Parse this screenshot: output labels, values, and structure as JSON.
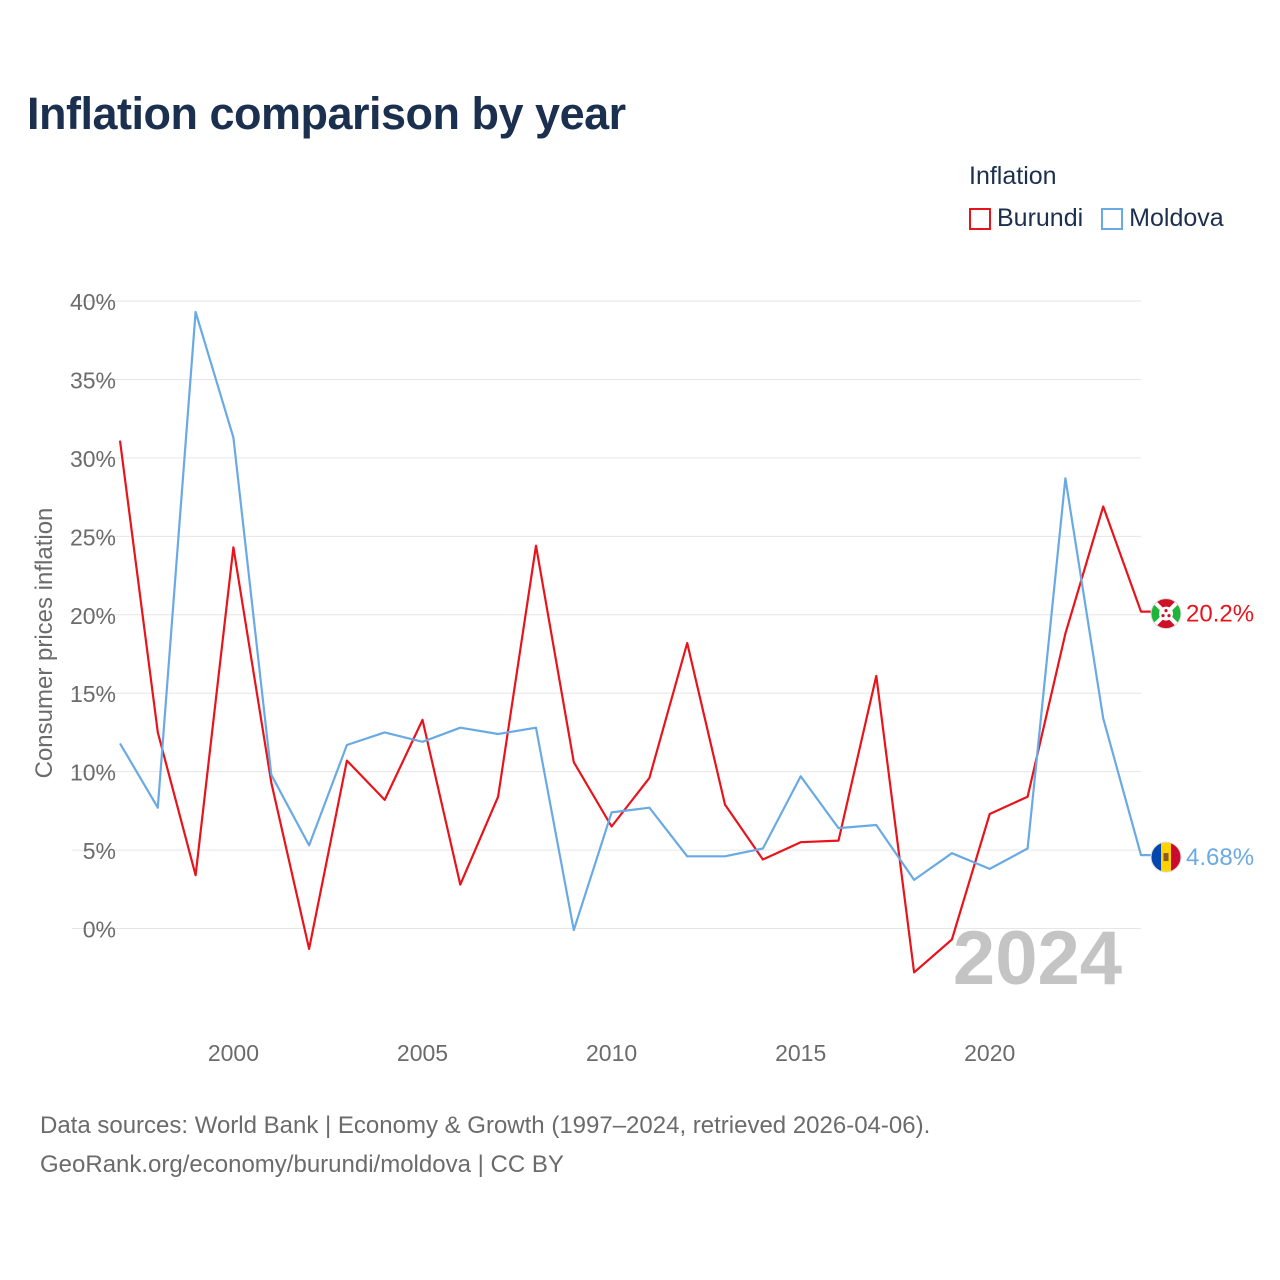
{
  "title": "Inflation comparison by year",
  "legend": {
    "title": "Inflation",
    "items": [
      {
        "name": "Burundi",
        "color": "#e8141b"
      },
      {
        "name": "Moldova",
        "color": "#6aaae4"
      }
    ]
  },
  "year_watermark": "2024",
  "source": {
    "line1": "Data sources: World Bank | Economy & Growth (1997–2024, retrieved 2026-04-06).",
    "line2": "GeoRank.org/economy/burundi/moldova | CC BY"
  },
  "chart_data": {
    "type": "line",
    "title": "Inflation comparison by year",
    "xlabel": "",
    "ylabel": "Consumer prices inflation",
    "xlim": [
      1997,
      2024
    ],
    "ylim": [
      -5,
      40
    ],
    "xticks": [
      2000,
      2005,
      2010,
      2015,
      2020
    ],
    "yticks": [
      0,
      5,
      10,
      15,
      20,
      25,
      30,
      35,
      40
    ],
    "ytick_labels": [
      "0%",
      "5%",
      "10%",
      "15%",
      "20%",
      "25%",
      "30%",
      "35%",
      "40%"
    ],
    "grid": true,
    "legend_position": "top-right",
    "x": [
      1997,
      1998,
      1999,
      2000,
      2001,
      2002,
      2003,
      2004,
      2005,
      2006,
      2007,
      2008,
      2009,
      2010,
      2011,
      2012,
      2013,
      2014,
      2015,
      2016,
      2017,
      2018,
      2019,
      2020,
      2021,
      2022,
      2023,
      2024
    ],
    "series": [
      {
        "name": "Burundi",
        "color": "#e8141b",
        "end_label": "20.2%",
        "flag": "burundi-flag-icon",
        "values": [
          31.1,
          12.5,
          3.4,
          24.3,
          9.3,
          -1.3,
          10.7,
          8.2,
          13.3,
          2.8,
          8.4,
          24.4,
          10.6,
          6.5,
          9.6,
          18.2,
          7.9,
          4.4,
          5.5,
          5.6,
          16.1,
          -2.8,
          -0.7,
          7.3,
          8.4,
          18.8,
          26.9,
          20.2
        ]
      },
      {
        "name": "Moldova",
        "color": "#6aaae4",
        "end_label": "4.68%",
        "flag": "moldova-flag-icon",
        "values": [
          11.8,
          7.7,
          39.3,
          31.3,
          9.8,
          5.3,
          11.7,
          12.5,
          11.9,
          12.8,
          12.4,
          12.8,
          -0.1,
          7.4,
          7.7,
          4.6,
          4.6,
          5.1,
          9.7,
          6.4,
          6.6,
          3.1,
          4.8,
          3.8,
          5.1,
          28.7,
          13.4,
          4.68
        ]
      }
    ]
  }
}
